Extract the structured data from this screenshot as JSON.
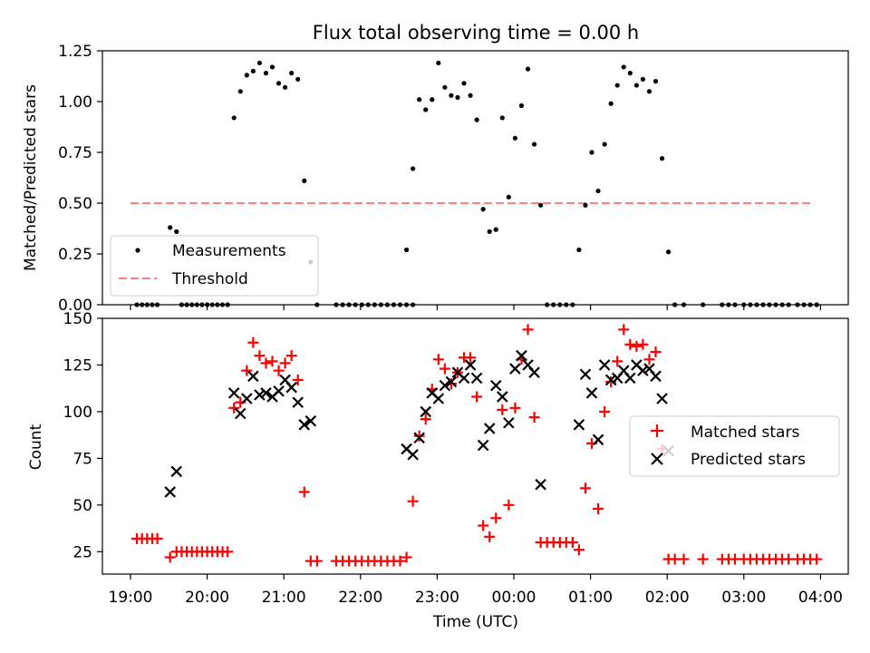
{
  "figure_title": "Flux total observing time = 0.00 h",
  "colors": {
    "matched": "#ff0000",
    "predicted": "#000000",
    "measurement": "#000000",
    "threshold": "#ff7f7f"
  },
  "chart_data": [
    {
      "type": "scatter",
      "title": "Flux total observing time = 0.00 h",
      "xlabel": "",
      "ylabel": "Matched/Predicted stars",
      "ylim": [
        0,
        1.25
      ],
      "yticks": [
        "0.00",
        "0.25",
        "0.50",
        "0.75",
        "1.00",
        "1.25"
      ],
      "x_range": [
        "19:00",
        "04:00"
      ],
      "legend": {
        "placement": "lower-left",
        "entries": [
          "Measurements",
          "Threshold"
        ]
      },
      "threshold": {
        "name": "Threshold",
        "y": 0.5,
        "x_start": "19:00",
        "x_end": "03:55"
      },
      "series": [
        {
          "name": "Measurements",
          "marker": "dot",
          "points": [
            [
              "19:05",
              0
            ],
            [
              "19:09",
              0
            ],
            [
              "19:13",
              0
            ],
            [
              "19:17",
              0
            ],
            [
              "19:21",
              0
            ],
            [
              "19:31",
              0.38
            ],
            [
              "19:36",
              0.36
            ],
            [
              "19:40",
              0
            ],
            [
              "19:44",
              0
            ],
            [
              "19:48",
              0
            ],
            [
              "19:52",
              0
            ],
            [
              "19:56",
              0
            ],
            [
              "20:00",
              0
            ],
            [
              "20:04",
              0
            ],
            [
              "20:08",
              0
            ],
            [
              "20:12",
              0
            ],
            [
              "20:16",
              0
            ],
            [
              "20:21",
              0.92
            ],
            [
              "20:26",
              1.05
            ],
            [
              "20:31",
              1.13
            ],
            [
              "20:36",
              1.15
            ],
            [
              "20:41",
              1.19
            ],
            [
              "20:46",
              1.14
            ],
            [
              "20:51",
              1.17
            ],
            [
              "20:56",
              1.09
            ],
            [
              "21:01",
              1.07
            ],
            [
              "21:06",
              1.14
            ],
            [
              "21:11",
              1.11
            ],
            [
              "21:16",
              0.61
            ],
            [
              "21:21",
              0.21
            ],
            [
              "21:26",
              0
            ],
            [
              "21:41",
              0
            ],
            [
              "21:46",
              0
            ],
            [
              "21:51",
              0
            ],
            [
              "21:56",
              0
            ],
            [
              "22:01",
              0
            ],
            [
              "22:06",
              0
            ],
            [
              "22:11",
              0
            ],
            [
              "22:16",
              0
            ],
            [
              "22:21",
              0
            ],
            [
              "22:26",
              0
            ],
            [
              "22:31",
              0
            ],
            [
              "22:36",
              0
            ],
            [
              "22:41",
              0
            ],
            [
              "22:36",
              0.27
            ],
            [
              "22:41",
              0.67
            ],
            [
              "22:46",
              1.01
            ],
            [
              "22:51",
              0.96
            ],
            [
              "22:56",
              1.01
            ],
            [
              "23:01",
              1.19
            ],
            [
              "23:06",
              1.07
            ],
            [
              "23:11",
              1.03
            ],
            [
              "23:16",
              1.02
            ],
            [
              "23:21",
              1.09
            ],
            [
              "23:26",
              1.03
            ],
            [
              "23:31",
              0.91
            ],
            [
              "23:36",
              0.47
            ],
            [
              "23:41",
              0.36
            ],
            [
              "23:46",
              0.37
            ],
            [
              "23:51",
              0.92
            ],
            [
              "23:56",
              0.53
            ],
            [
              "00:01",
              0.82
            ],
            [
              "00:06",
              0.98
            ],
            [
              "00:11",
              1.16
            ],
            [
              "00:16",
              0.79
            ],
            [
              "00:21",
              0.49
            ],
            [
              "00:26",
              0
            ],
            [
              "00:31",
              0
            ],
            [
              "00:36",
              0
            ],
            [
              "00:41",
              0
            ],
            [
              "00:46",
              0
            ],
            [
              "00:51",
              0.27
            ],
            [
              "00:56",
              0.49
            ],
            [
              "01:01",
              0.75
            ],
            [
              "01:06",
              0.56
            ],
            [
              "01:11",
              0.79
            ],
            [
              "01:16",
              0.99
            ],
            [
              "01:21",
              1.08
            ],
            [
              "01:26",
              1.17
            ],
            [
              "01:31",
              1.14
            ],
            [
              "01:36",
              1.08
            ],
            [
              "01:41",
              1.11
            ],
            [
              "01:46",
              1.05
            ],
            [
              "01:51",
              1.1
            ],
            [
              "01:56",
              0.72
            ],
            [
              "02:01",
              0.26
            ],
            [
              "02:06",
              0
            ],
            [
              "02:13",
              0
            ],
            [
              "02:28",
              0
            ],
            [
              "02:43",
              0
            ],
            [
              "02:48",
              0
            ],
            [
              "02:53",
              0
            ],
            [
              "03:00",
              0
            ],
            [
              "03:05",
              0
            ],
            [
              "03:10",
              0
            ],
            [
              "03:15",
              0
            ],
            [
              "03:20",
              0
            ],
            [
              "03:25",
              0
            ],
            [
              "03:30",
              0
            ],
            [
              "03:35",
              0
            ],
            [
              "03:42",
              0
            ],
            [
              "03:47",
              0
            ],
            [
              "03:52",
              0
            ],
            [
              "03:57",
              0
            ]
          ]
        }
      ]
    },
    {
      "type": "scatter",
      "xlabel": "Time (UTC)",
      "ylabel": "Count",
      "ylim": [
        13,
        150
      ],
      "yticks": [
        "25",
        "50",
        "75",
        "100",
        "125",
        "150"
      ],
      "xticks": [
        "19:00",
        "20:00",
        "21:00",
        "22:00",
        "23:00",
        "00:00",
        "01:00",
        "02:00",
        "03:00",
        "04:00"
      ],
      "legend": {
        "placement": "center-right",
        "entries": [
          "Matched stars",
          "Predicted stars"
        ]
      },
      "series": [
        {
          "name": "Matched stars",
          "marker": "plus",
          "points": [
            [
              "19:05",
              32
            ],
            [
              "19:09",
              32
            ],
            [
              "19:13",
              32
            ],
            [
              "19:17",
              32
            ],
            [
              "19:21",
              32
            ],
            [
              "19:31",
              22
            ],
            [
              "19:36",
              25
            ],
            [
              "19:40",
              25
            ],
            [
              "19:44",
              25
            ],
            [
              "19:48",
              25
            ],
            [
              "19:52",
              25
            ],
            [
              "19:56",
              25
            ],
            [
              "20:00",
              25
            ],
            [
              "20:04",
              25
            ],
            [
              "20:08",
              25
            ],
            [
              "20:12",
              25
            ],
            [
              "20:16",
              25
            ],
            [
              "20:21",
              102
            ],
            [
              "20:26",
              105
            ],
            [
              "20:31",
              122
            ],
            [
              "20:36",
              137
            ],
            [
              "20:41",
              130
            ],
            [
              "20:46",
              126
            ],
            [
              "20:51",
              127
            ],
            [
              "20:56",
              122
            ],
            [
              "21:01",
              126
            ],
            [
              "21:06",
              130
            ],
            [
              "21:11",
              117
            ],
            [
              "21:16",
              57
            ],
            [
              "21:21",
              20
            ],
            [
              "21:26",
              20
            ],
            [
              "21:41",
              20
            ],
            [
              "21:46",
              20
            ],
            [
              "21:51",
              20
            ],
            [
              "21:56",
              20
            ],
            [
              "22:01",
              20
            ],
            [
              "22:06",
              20
            ],
            [
              "22:11",
              20
            ],
            [
              "22:16",
              20
            ],
            [
              "22:21",
              20
            ],
            [
              "22:26",
              20
            ],
            [
              "22:31",
              20
            ],
            [
              "22:36",
              22
            ],
            [
              "22:41",
              52
            ],
            [
              "22:46",
              87
            ],
            [
              "22:51",
              96
            ],
            [
              "22:56",
              112
            ],
            [
              "23:01",
              128
            ],
            [
              "23:06",
              123
            ],
            [
              "23:11",
              115
            ],
            [
              "23:16",
              121
            ],
            [
              "23:21",
              129
            ],
            [
              "23:26",
              129
            ],
            [
              "23:31",
              108
            ],
            [
              "23:36",
              39
            ],
            [
              "23:41",
              33
            ],
            [
              "23:46",
              43
            ],
            [
              "23:51",
              101
            ],
            [
              "23:56",
              50
            ],
            [
              "00:01",
              102
            ],
            [
              "00:06",
              128
            ],
            [
              "00:11",
              144
            ],
            [
              "00:16",
              97
            ],
            [
              "00:21",
              30
            ],
            [
              "00:26",
              30
            ],
            [
              "00:31",
              30
            ],
            [
              "00:36",
              30
            ],
            [
              "00:41",
              30
            ],
            [
              "00:46",
              30
            ],
            [
              "00:51",
              26
            ],
            [
              "00:56",
              59
            ],
            [
              "01:01",
              83
            ],
            [
              "01:06",
              48
            ],
            [
              "01:11",
              100
            ],
            [
              "01:16",
              116
            ],
            [
              "01:21",
              127
            ],
            [
              "01:26",
              144
            ],
            [
              "01:31",
              136
            ],
            [
              "01:36",
              135
            ],
            [
              "01:41",
              136
            ],
            [
              "01:46",
              128
            ],
            [
              "01:51",
              132
            ],
            [
              "01:56",
              80
            ],
            [
              "02:01",
              21
            ],
            [
              "02:06",
              21
            ],
            [
              "02:13",
              21
            ],
            [
              "02:28",
              21
            ],
            [
              "02:43",
              21
            ],
            [
              "02:48",
              21
            ],
            [
              "02:53",
              21
            ],
            [
              "03:00",
              21
            ],
            [
              "03:05",
              21
            ],
            [
              "03:10",
              21
            ],
            [
              "03:15",
              21
            ],
            [
              "03:20",
              21
            ],
            [
              "03:25",
              21
            ],
            [
              "03:30",
              21
            ],
            [
              "03:35",
              21
            ],
            [
              "03:42",
              21
            ],
            [
              "03:47",
              21
            ],
            [
              "03:52",
              21
            ],
            [
              "03:57",
              21
            ]
          ]
        },
        {
          "name": "Predicted stars",
          "marker": "x",
          "points": [
            [
              "19:31",
              57
            ],
            [
              "19:36",
              68
            ],
            [
              "20:21",
              110
            ],
            [
              "20:26",
              99
            ],
            [
              "20:31",
              107
            ],
            [
              "20:36",
              119
            ],
            [
              "20:41",
              109
            ],
            [
              "20:46",
              110
            ],
            [
              "20:51",
              108
            ],
            [
              "20:56",
              111
            ],
            [
              "21:01",
              117
            ],
            [
              "21:06",
              113
            ],
            [
              "21:11",
              105
            ],
            [
              "21:16",
              93
            ],
            [
              "21:21",
              95
            ],
            [
              "22:36",
              80
            ],
            [
              "22:41",
              77
            ],
            [
              "22:46",
              86
            ],
            [
              "22:51",
              100
            ],
            [
              "22:56",
              110
            ],
            [
              "23:01",
              107
            ],
            [
              "23:06",
              114
            ],
            [
              "23:11",
              116
            ],
            [
              "23:16",
              121
            ],
            [
              "23:21",
              118
            ],
            [
              "23:26",
              125
            ],
            [
              "23:31",
              118
            ],
            [
              "23:36",
              82
            ],
            [
              "23:41",
              91
            ],
            [
              "23:46",
              114
            ],
            [
              "23:51",
              108
            ],
            [
              "23:56",
              94
            ],
            [
              "00:01",
              123
            ],
            [
              "00:06",
              130
            ],
            [
              "00:11",
              125
            ],
            [
              "00:16",
              121
            ],
            [
              "00:21",
              61
            ],
            [
              "00:51",
              93
            ],
            [
              "00:56",
              120
            ],
            [
              "01:01",
              110
            ],
            [
              "01:06",
              85
            ],
            [
              "01:11",
              125
            ],
            [
              "01:16",
              117
            ],
            [
              "01:21",
              118
            ],
            [
              "01:26",
              122
            ],
            [
              "01:31",
              118
            ],
            [
              "01:36",
              125
            ],
            [
              "01:41",
              122
            ],
            [
              "01:46",
              123
            ],
            [
              "01:51",
              119
            ],
            [
              "01:56",
              107
            ],
            [
              "02:01",
              79
            ]
          ]
        }
      ]
    }
  ]
}
